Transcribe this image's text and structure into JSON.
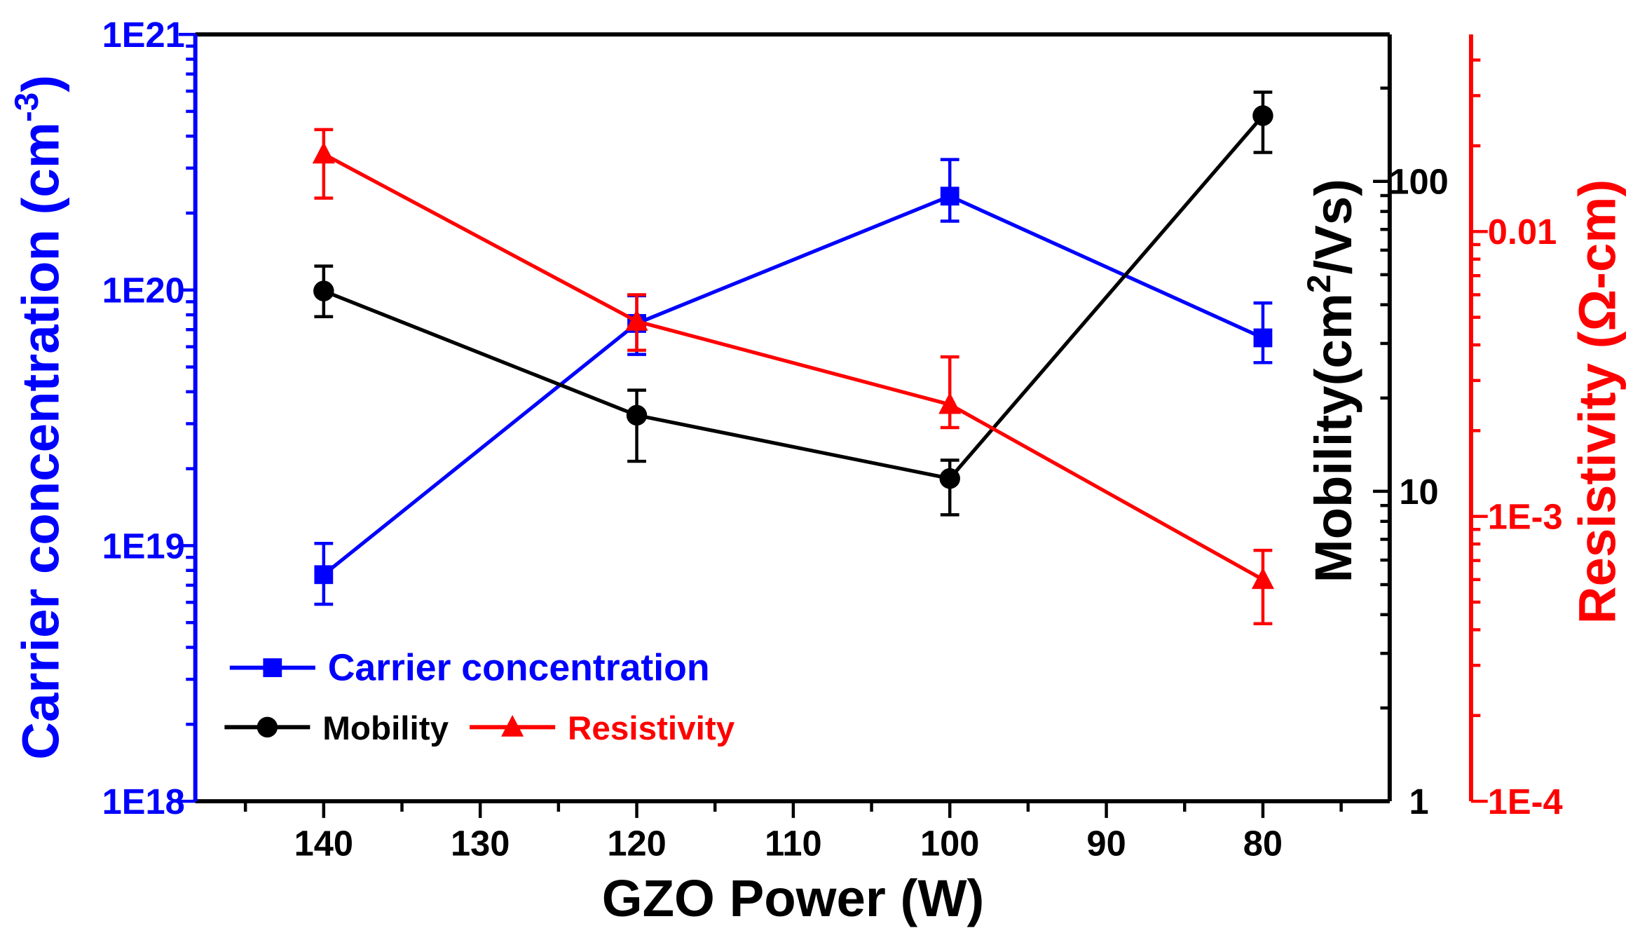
{
  "chart_data": {
    "type": "line",
    "title": "",
    "xlabel": "GZO Power (W)",
    "xlim": [
      148.2,
      71.9
    ],
    "x": [
      140,
      120,
      100,
      80
    ],
    "xticks": [
      140,
      130,
      120,
      110,
      100,
      90,
      80
    ],
    "axes": {
      "left": {
        "label_main": "Carrier concentration (cm",
        "label_sup": "-3",
        "label_end": ")",
        "scale": "log",
        "ylim": [
          1e+18,
          1e+21
        ],
        "ticks": [
          {
            "v": 1e+18,
            "label": "1E18"
          },
          {
            "v": 1e+19,
            "label": "1E19"
          },
          {
            "v": 1e+20,
            "label": "1E20"
          },
          {
            "v": 1e+21,
            "label": "1E21"
          }
        ],
        "color": "#0000ff"
      },
      "right1": {
        "label_main": "Mobility(cm",
        "label_sup": "2",
        "label_end": "/Vs)",
        "scale": "log",
        "ylim": [
          1,
          298
        ],
        "ticks": [
          {
            "v": 1,
            "label": "1"
          },
          {
            "v": 10,
            "label": "10"
          },
          {
            "v": 100,
            "label": "100"
          }
        ],
        "color": "#000000"
      },
      "right2": {
        "label": "Resistivity (Ω-cm)",
        "scale": "log",
        "ylim": [
          0.0001,
          0.0492
        ],
        "ticks": [
          {
            "v": 0.0001,
            "label": "1E-4"
          },
          {
            "v": 0.001,
            "label": "1E-3"
          },
          {
            "v": 0.01,
            "label": "0.01"
          }
        ],
        "color": "#ff0000"
      }
    },
    "series": [
      {
        "name": "Carrier concentration",
        "axis": "left",
        "color": "#0000ff",
        "marker": "square",
        "values": [
          7.7e+18,
          7.4e+19,
          2.33e+20,
          6.5e+19
        ],
        "err_high": [
          1.02e+19,
          9.5e+19,
          3.24e+20,
          8.9e+19
        ],
        "err_low": [
          5.9e+18,
          5.6e+19,
          1.86e+20,
          5.2e+19
        ]
      },
      {
        "name": "Mobility",
        "axis": "right1",
        "color": "#000000",
        "marker": "circle",
        "values": [
          44.3,
          17.6,
          11.0,
          163
        ],
        "err_high": [
          53.3,
          21.2,
          12.6,
          194
        ],
        "err_low": [
          36.6,
          12.5,
          8.4,
          124
        ]
      },
      {
        "name": "Resistivity",
        "axis": "right2",
        "color": "#ff0000",
        "marker": "triangle",
        "values": [
          0.0187,
          0.00484,
          0.00247,
          0.0006
        ],
        "err_high": [
          0.0228,
          0.006,
          0.00363,
          0.00076
        ],
        "err_low": [
          0.0131,
          0.00383,
          0.00205,
          0.00042
        ]
      }
    ],
    "legend": {
      "placement": "bottom-left",
      "entries": [
        "Carrier concentration",
        "Mobility",
        "Resistivity"
      ]
    },
    "grid": false
  }
}
